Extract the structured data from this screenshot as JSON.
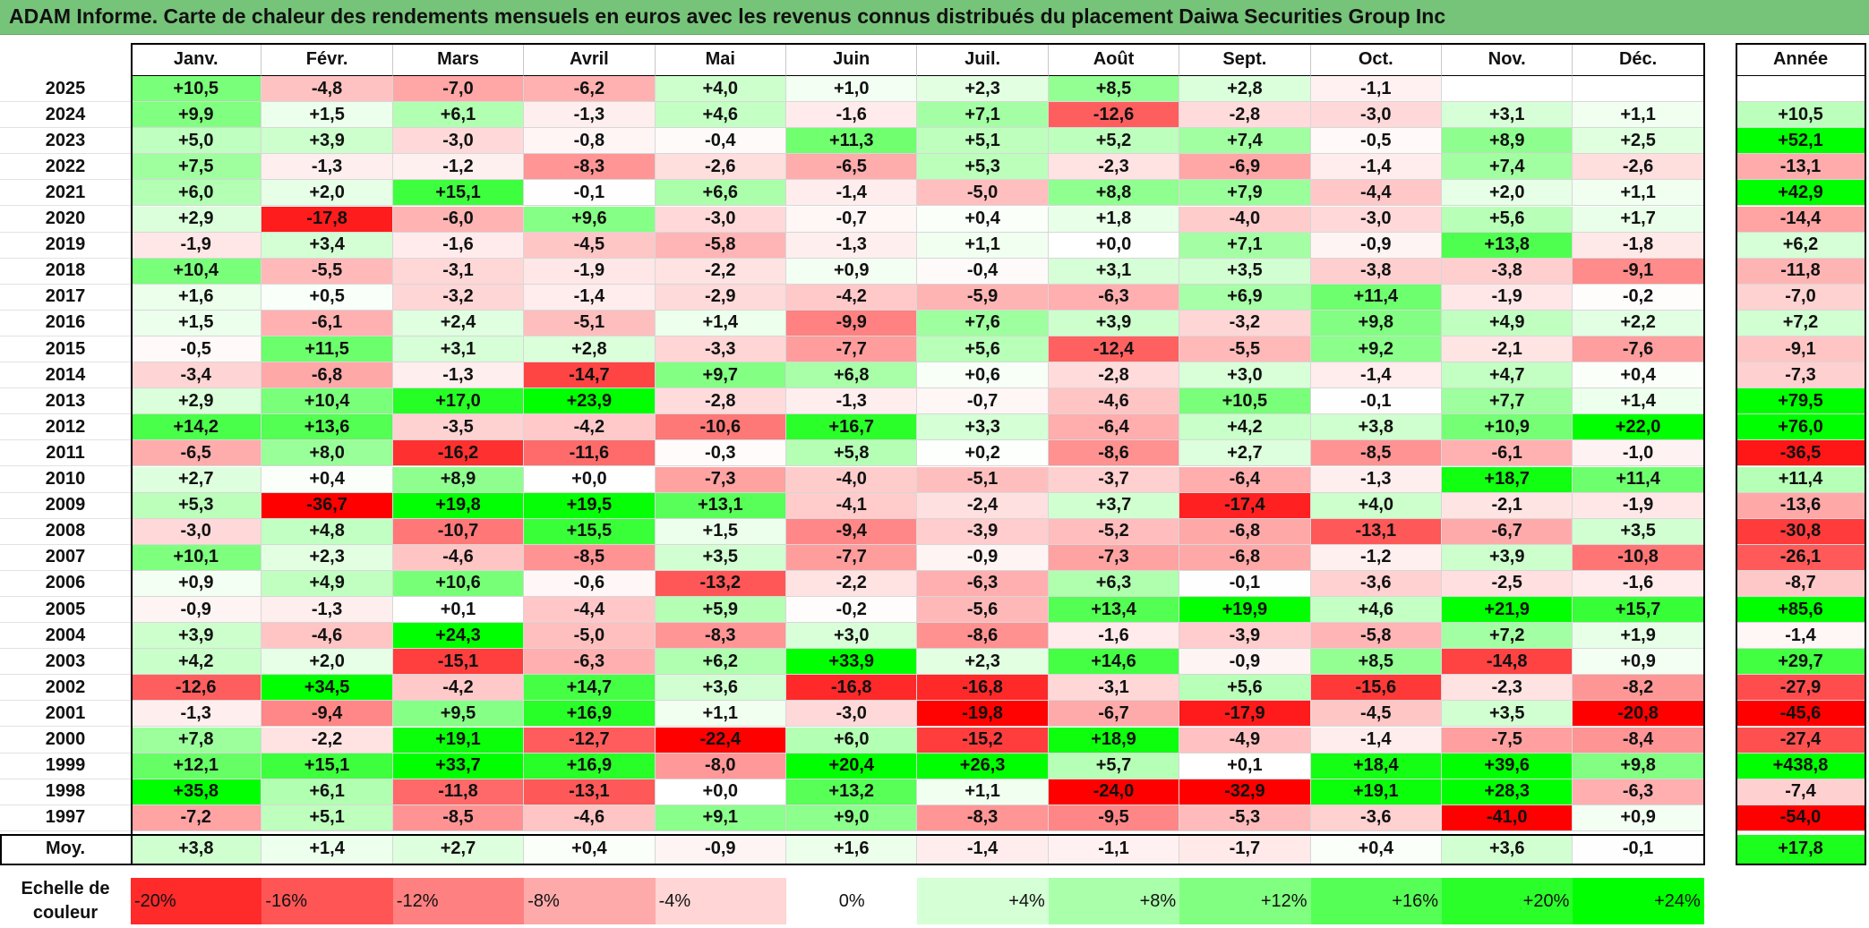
{
  "title": "ADAM Informe. Carte de chaleur des rendements mensuels en euros avec les revenus connus distribués du placement Daiwa Securities Group Inc",
  "chart_data": {
    "type": "heatmap",
    "title": "ADAM Informe. Carte de chaleur des rendements mensuels en euros avec les revenus connus distribués du placement Daiwa Securities Group Inc",
    "columns": [
      "Janv.",
      "Févr.",
      "Mars",
      "Avril",
      "Mai",
      "Juin",
      "Juil.",
      "Août",
      "Sept.",
      "Oct.",
      "Nov.",
      "Déc."
    ],
    "annual_header": "Année",
    "rows": [
      {
        "year": "2025",
        "values": [
          "+10,5",
          "-4,8",
          "-7,0",
          "-6,2",
          "+4,0",
          "+1,0",
          "+2,3",
          "+8,5",
          "+2,8",
          "-1,1",
          "",
          ""
        ],
        "annual": ""
      },
      {
        "year": "2024",
        "values": [
          "+9,9",
          "+1,5",
          "+6,1",
          "-1,3",
          "+4,6",
          "-1,6",
          "+7,1",
          "-12,6",
          "-2,8",
          "-3,0",
          "+3,1",
          "+1,1"
        ],
        "annual": "+10,5"
      },
      {
        "year": "2023",
        "values": [
          "+5,0",
          "+3,9",
          "-3,0",
          "-0,8",
          "-0,4",
          "+11,3",
          "+5,1",
          "+5,2",
          "+7,4",
          "-0,5",
          "+8,9",
          "+2,5"
        ],
        "annual": "+52,1"
      },
      {
        "year": "2022",
        "values": [
          "+7,5",
          "-1,3",
          "-1,2",
          "-8,3",
          "-2,6",
          "-6,5",
          "+5,3",
          "-2,3",
          "-6,9",
          "-1,4",
          "+7,4",
          "-2,6"
        ],
        "annual": "-13,1"
      },
      {
        "year": "2021",
        "values": [
          "+6,0",
          "+2,0",
          "+15,1",
          "-0,1",
          "+6,6",
          "-1,4",
          "-5,0",
          "+8,8",
          "+7,9",
          "-4,4",
          "+2,0",
          "+1,1"
        ],
        "annual": "+42,9"
      },
      {
        "year": "2020",
        "values": [
          "+2,9",
          "-17,8",
          "-6,0",
          "+9,6",
          "-3,0",
          "-0,7",
          "+0,4",
          "+1,8",
          "-4,0",
          "-3,0",
          "+5,6",
          "+1,7"
        ],
        "annual": "-14,4"
      },
      {
        "year": "2019",
        "values": [
          "-1,9",
          "+3,4",
          "-1,6",
          "-4,5",
          "-5,8",
          "-1,3",
          "+1,1",
          "+0,0",
          "+7,1",
          "-0,9",
          "+13,8",
          "-1,8"
        ],
        "annual": "+6,2"
      },
      {
        "year": "2018",
        "values": [
          "+10,4",
          "-5,5",
          "-3,1",
          "-1,9",
          "-2,2",
          "+0,9",
          "-0,4",
          "+3,1",
          "+3,5",
          "-3,8",
          "-3,8",
          "-9,1"
        ],
        "annual": "-11,8"
      },
      {
        "year": "2017",
        "values": [
          "+1,6",
          "+0,5",
          "-3,2",
          "-1,4",
          "-2,9",
          "-4,2",
          "-5,9",
          "-6,3",
          "+6,9",
          "+11,4",
          "-1,9",
          "-0,2"
        ],
        "annual": "-7,0"
      },
      {
        "year": "2016",
        "values": [
          "+1,5",
          "-6,1",
          "+2,4",
          "-5,1",
          "+1,4",
          "-9,9",
          "+7,6",
          "+3,9",
          "-3,2",
          "+9,8",
          "+4,9",
          "+2,2"
        ],
        "annual": "+7,2"
      },
      {
        "year": "2015",
        "values": [
          "-0,5",
          "+11,5",
          "+3,1",
          "+2,8",
          "-3,3",
          "-7,7",
          "+5,6",
          "-12,4",
          "-5,5",
          "+9,2",
          "-2,1",
          "-7,6"
        ],
        "annual": "-9,1"
      },
      {
        "year": "2014",
        "values": [
          "-3,4",
          "-6,8",
          "-1,3",
          "-14,7",
          "+9,7",
          "+6,8",
          "+0,6",
          "-2,8",
          "+3,0",
          "-1,4",
          "+4,7",
          "+0,4"
        ],
        "annual": "-7,3"
      },
      {
        "year": "2013",
        "values": [
          "+2,9",
          "+10,4",
          "+17,0",
          "+23,9",
          "-2,8",
          "-1,3",
          "-0,7",
          "-4,6",
          "+10,5",
          "-0,1",
          "+7,7",
          "+1,4"
        ],
        "annual": "+79,5"
      },
      {
        "year": "2012",
        "values": [
          "+14,2",
          "+13,6",
          "-3,5",
          "-4,2",
          "-10,6",
          "+16,7",
          "+3,3",
          "-6,4",
          "+4,2",
          "+3,8",
          "+10,9",
          "+22,0"
        ],
        "annual": "+76,0"
      },
      {
        "year": "2011",
        "values": [
          "-6,5",
          "+8,0",
          "-16,2",
          "-11,6",
          "-0,3",
          "+5,8",
          "+0,2",
          "-8,6",
          "+2,7",
          "-8,5",
          "-6,1",
          "-1,0"
        ],
        "annual": "-36,5"
      },
      {
        "year": "2010",
        "values": [
          "+2,7",
          "+0,4",
          "+8,9",
          "+0,0",
          "-7,3",
          "-4,0",
          "-5,1",
          "-3,7",
          "-6,4",
          "-1,3",
          "+18,7",
          "+11,4"
        ],
        "annual": "+11,4"
      },
      {
        "year": "2009",
        "values": [
          "+5,3",
          "-36,7",
          "+19,8",
          "+19,5",
          "+13,1",
          "-4,1",
          "-2,4",
          "+3,7",
          "-17,4",
          "+4,0",
          "-2,1",
          "-1,9"
        ],
        "annual": "-13,6"
      },
      {
        "year": "2008",
        "values": [
          "-3,0",
          "+4,8",
          "-10,7",
          "+15,5",
          "+1,5",
          "-9,4",
          "-3,9",
          "-5,2",
          "-6,8",
          "-13,1",
          "-6,7",
          "+3,5"
        ],
        "annual": "-30,8"
      },
      {
        "year": "2007",
        "values": [
          "+10,1",
          "+2,3",
          "-4,6",
          "-8,5",
          "+3,5",
          "-7,7",
          "-0,9",
          "-7,3",
          "-6,8",
          "-1,2",
          "+3,9",
          "-10,8"
        ],
        "annual": "-26,1"
      },
      {
        "year": "2006",
        "values": [
          "+0,9",
          "+4,9",
          "+10,6",
          "-0,6",
          "-13,2",
          "-2,2",
          "-6,3",
          "+6,3",
          "-0,1",
          "-3,6",
          "-2,5",
          "-1,6"
        ],
        "annual": "-8,7"
      },
      {
        "year": "2005",
        "values": [
          "-0,9",
          "-1,3",
          "+0,1",
          "-4,4",
          "+5,9",
          "-0,2",
          "-5,6",
          "+13,4",
          "+19,9",
          "+4,6",
          "+21,9",
          "+15,7"
        ],
        "annual": "+85,6"
      },
      {
        "year": "2004",
        "values": [
          "+3,9",
          "-4,6",
          "+24,3",
          "-5,0",
          "-8,3",
          "+3,0",
          "-8,6",
          "-1,6",
          "-3,9",
          "-5,8",
          "+7,2",
          "+1,9"
        ],
        "annual": "-1,4"
      },
      {
        "year": "2003",
        "values": [
          "+4,2",
          "+2,0",
          "-15,1",
          "-6,3",
          "+6,2",
          "+33,9",
          "+2,3",
          "+14,6",
          "-0,9",
          "+8,5",
          "-14,8",
          "+0,9"
        ],
        "annual": "+29,7"
      },
      {
        "year": "2002",
        "values": [
          "-12,6",
          "+34,5",
          "-4,2",
          "+14,7",
          "+3,6",
          "-16,8",
          "-16,8",
          "-3,1",
          "+5,6",
          "-15,6",
          "-2,3",
          "-8,2"
        ],
        "annual": "-27,9"
      },
      {
        "year": "2001",
        "values": [
          "-1,3",
          "-9,4",
          "+9,5",
          "+16,9",
          "+1,1",
          "-3,0",
          "-19,8",
          "-6,7",
          "-17,9",
          "-4,5",
          "+3,5",
          "-20,8"
        ],
        "annual": "-45,6"
      },
      {
        "year": "2000",
        "values": [
          "+7,8",
          "-2,2",
          "+19,1",
          "-12,7",
          "-22,4",
          "+6,0",
          "-15,2",
          "+18,9",
          "-4,9",
          "-1,4",
          "-7,5",
          "-8,4"
        ],
        "annual": "-27,4"
      },
      {
        "year": "1999",
        "values": [
          "+12,1",
          "+15,1",
          "+33,7",
          "+16,9",
          "-8,0",
          "+20,4",
          "+26,3",
          "+5,7",
          "+0,1",
          "+18,4",
          "+39,6",
          "+9,8"
        ],
        "annual": "+438,8"
      },
      {
        "year": "1998",
        "values": [
          "+35,8",
          "+6,1",
          "-11,8",
          "-13,1",
          "+0,0",
          "+13,2",
          "+1,1",
          "-24,0",
          "-32,9",
          "+19,1",
          "+28,3",
          "-6,3"
        ],
        "annual": "-7,4"
      },
      {
        "year": "1997",
        "values": [
          "-7,2",
          "+5,1",
          "-8,5",
          "-4,6",
          "+9,1",
          "+9,0",
          "-8,3",
          "-9,5",
          "-5,3",
          "-3,6",
          "-41,0",
          "+0,9"
        ],
        "annual": "-54,0"
      }
    ],
    "average": {
      "label": "Moy.",
      "values": [
        "+3,8",
        "+1,4",
        "+2,7",
        "+0,4",
        "-0,9",
        "+1,6",
        "-1,4",
        "-1,1",
        "-1,7",
        "+0,4",
        "+3,6",
        "-0,1"
      ],
      "annual": "+17,8"
    },
    "color_scale": {
      "label": "Echelle de couleur",
      "stops": [
        "-20%",
        "-16%",
        "-12%",
        "-8%",
        "-4%",
        "0%",
        "+4%",
        "+8%",
        "+12%",
        "+16%",
        "+20%",
        "+24%"
      ]
    },
    "colors": {
      "negative_max": "#ff0000",
      "neutral": "#ffffff",
      "positive_max": "#00ff00",
      "title_bar": "#76c479"
    }
  }
}
